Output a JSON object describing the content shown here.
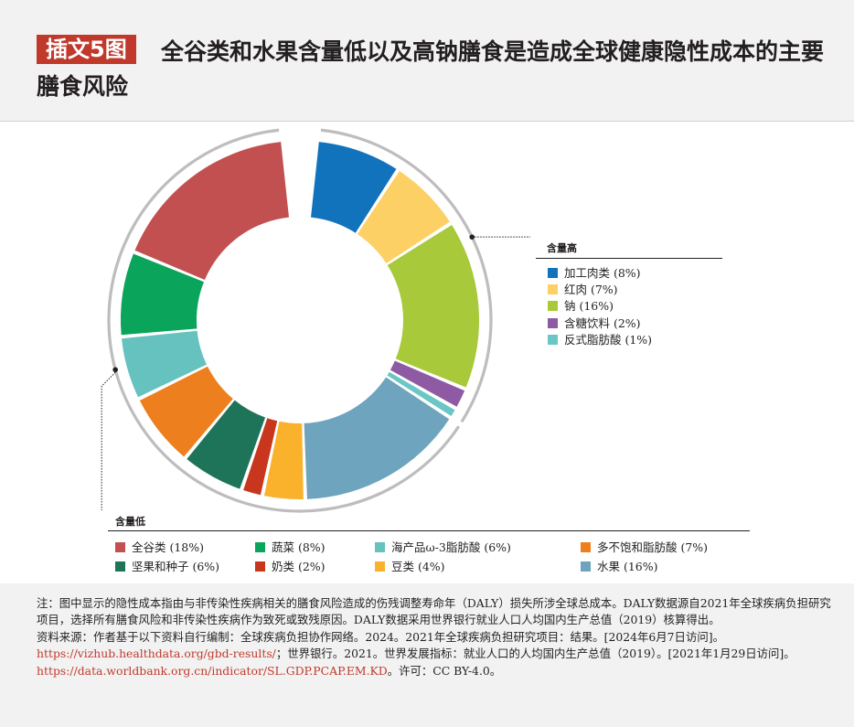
{
  "header": {
    "tag": "插文5图",
    "title": "全谷类和水果含量低以及高钠膳食是造成全球健康隐性成本的主要膳食风险"
  },
  "colors": {
    "tag_bg": "#c0392b",
    "bracket": "#bdbdbd"
  },
  "chart_data": {
    "type": "donut",
    "legend_high_title": "含量高",
    "legend_low_title": "含量低",
    "series": [
      {
        "name": "加工肉类",
        "label": "加工肉类 (8%)",
        "value": 8,
        "group": "high",
        "color": "#1173bc"
      },
      {
        "name": "红肉",
        "label": "红肉 (7%)",
        "value": 7,
        "group": "high",
        "color": "#fdd065"
      },
      {
        "name": "钠",
        "label": "钠 (16%)",
        "value": 16,
        "group": "high",
        "color": "#a8c93a"
      },
      {
        "name": "含糖饮料",
        "label": "含糖饮料 (2%)",
        "value": 2,
        "group": "high",
        "color": "#8e5aa3"
      },
      {
        "name": "反式脂肪酸",
        "label": "反式脂肪酸 (1%)",
        "value": 1,
        "group": "high",
        "color": "#6ac7c6"
      },
      {
        "name": "水果",
        "label": "水果 (16%)",
        "value": 16,
        "group": "low",
        "color": "#6ea4be"
      },
      {
        "name": "豆类",
        "label": "豆类 (4%)",
        "value": 4,
        "group": "low",
        "color": "#fab22d"
      },
      {
        "name": "奶类",
        "label": "奶类 (2%)",
        "value": 2,
        "group": "low",
        "color": "#c7361d"
      },
      {
        "name": "坚果和种子",
        "label": "坚果和种子 (6%)",
        "value": 6,
        "group": "low",
        "color": "#1e7458"
      },
      {
        "name": "多不饱和脂肪酸",
        "label": "多不饱和脂肪酸 (7%)",
        "value": 7,
        "group": "low",
        "color": "#ee7f1e"
      },
      {
        "name": "海产品ω-3脂肪酸",
        "label": "海产品ω-3脂肪酸 (6%)",
        "value": 6,
        "group": "low",
        "color": "#65c2bf"
      },
      {
        "name": "蔬菜",
        "label": "蔬菜 (8%)",
        "value": 8,
        "group": "low",
        "color": "#0aa45b"
      },
      {
        "name": "全谷类",
        "label": "全谷类 (18%)",
        "value": 18,
        "group": "low",
        "color": "#c35050"
      }
    ]
  },
  "notes": {
    "note": "注：图中显示的隐性成本指由与非传染性疾病相关的膳食风险造成的伤残调整寿命年（DALY）损失所涉全球总成本。DALY数据源自2021年全球疾病负担研究项目，选择所有膳食风险和非传染性疾病作为致死或致残原因。DALY数据采用世界银行就业人口人均国内生产总值（2019）核算得出。",
    "source_a": "资料来源：作者基于以下资料自行编制：全球疾病负担协作网络。2024。2021年全球疾病负担研究项目：结果。[2024年6月7日访问]。",
    "url1": "https://vizhub.healthdata.org/gbd-results/",
    "source_b": "；世界银行。2021。世界发展指标：就业人口的人均国内生产总值（2019）。[2021年1月29日访问]。",
    "url2": "https://data.worldbank.org.cn/indicator/SL.GDP.PCAP.EM.KD",
    "source_c": "。许可：CC BY-4.0。"
  }
}
